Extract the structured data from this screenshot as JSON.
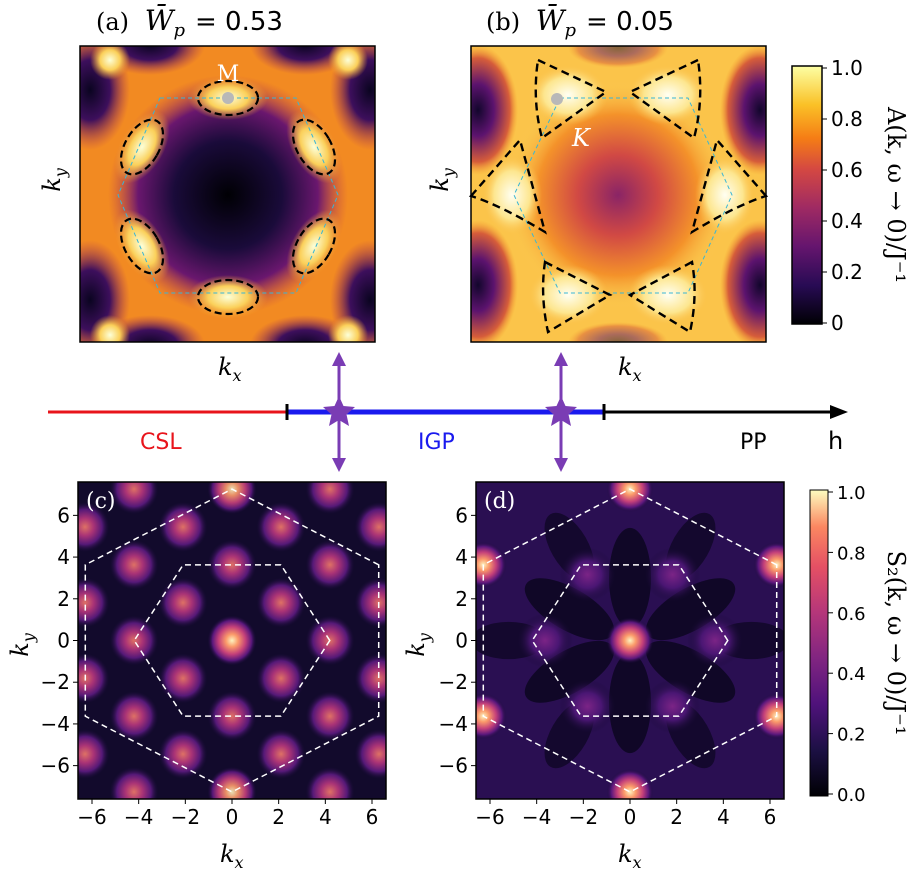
{
  "chart_data": [
    {
      "type": "heatmap",
      "panel": "(a)",
      "title_prefix": "(a)",
      "title_symbol": "W̄",
      "title_subscript": "p",
      "title_value": "= 0.53",
      "xlabel": "k",
      "xlabel_sub": "x",
      "ylabel": "k",
      "ylabel_sub": "y",
      "annotation": "M",
      "colormap": "inferno",
      "fermi_pockets": "ellipses at hexagon edge midpoints (M points)",
      "bz": "hexagon (cyan dashed)"
    },
    {
      "type": "heatmap",
      "panel": "(b)",
      "title_prefix": "(b)",
      "title_symbol": "W̄",
      "title_subscript": "p",
      "title_value": "= 0.05",
      "xlabel": "k",
      "xlabel_sub": "x",
      "ylabel": "k",
      "ylabel_sub": "y",
      "annotation": "K",
      "colormap": "inferno",
      "fermi_pockets": "triangles at hexagon corners (K points)",
      "bz": "hexagon (cyan dashed)"
    },
    {
      "type": "colorbar",
      "label": "A(k, ω → 0)/J⁻¹",
      "ticks": [
        "1.0",
        "0.8",
        "0.6",
        "0.4",
        "0.2",
        "0"
      ],
      "range": [
        0,
        1
      ],
      "colormap": "inferno"
    },
    {
      "type": "phase_diagram",
      "axis_label": "h",
      "segments": [
        {
          "name": "CSL",
          "color": "#e8141b"
        },
        {
          "name": "IGP",
          "color": "#1a1aee"
        },
        {
          "name": "PP",
          "color": "#000000"
        }
      ],
      "markers": [
        {
          "phase": "IGP",
          "refers_to": [
            "(a)",
            "(c)"
          ],
          "color": "#7a3cb4"
        },
        {
          "phase": "IGP",
          "refers_to": [
            "(b)",
            "(d)"
          ],
          "color": "#7a3cb4"
        }
      ]
    },
    {
      "type": "heatmap",
      "panel": "(c)",
      "title": "(c)",
      "xlabel": "k",
      "xlabel_sub": "x",
      "ylabel": "k",
      "ylabel_sub": "y",
      "xlim": [
        -6.6,
        6.6
      ],
      "ylim": [
        -7.6,
        7.6
      ],
      "xticks": [
        -6,
        -4,
        -2,
        0,
        2,
        4,
        6
      ],
      "yticks": [
        -6,
        -4,
        -2,
        0,
        2,
        4,
        6
      ],
      "xtick_labels": [
        "−6",
        "−4",
        "−2",
        "0",
        "2",
        "4",
        "6"
      ],
      "ytick_labels": [
        "6",
        "4",
        "2",
        "0",
        "−2",
        "−4",
        "−6"
      ],
      "colormap": "magma",
      "peaks": "triangular lattice of bright spots, strongest at Γ (0,0)",
      "inner_hexagon_radius": 4.19,
      "outer_hexagon_radius": 7.26
    },
    {
      "type": "heatmap",
      "panel": "(d)",
      "title": "(d)",
      "xlabel": "k",
      "xlabel_sub": "x",
      "ylabel": "k",
      "ylabel_sub": "y",
      "xlim": [
        -6.6,
        6.6
      ],
      "ylim": [
        -7.6,
        7.6
      ],
      "xticks": [
        -6,
        -4,
        -2,
        0,
        2,
        4,
        6
      ],
      "yticks": [
        -6,
        -4,
        -2,
        0,
        2,
        4,
        6
      ],
      "xtick_labels": [
        "−6",
        "−4",
        "−2",
        "0",
        "2",
        "4",
        "6"
      ],
      "ytick_labels": [
        "6",
        "4",
        "2",
        "0",
        "−2",
        "−4",
        "−6"
      ],
      "colormap": "magma",
      "peaks": "bright spots at Γ (0,0) and outer hexagon corners, star-like streaks",
      "inner_hexagon_radius": 4.19,
      "outer_hexagon_radius": 7.26
    },
    {
      "type": "colorbar",
      "label": "S₂(k, ω → 0)/J⁻¹",
      "ticks": [
        "1.0",
        "0.8",
        "0.6",
        "0.4",
        "0.2",
        "0.0"
      ],
      "range": [
        0,
        1
      ],
      "colormap": "magma"
    }
  ]
}
